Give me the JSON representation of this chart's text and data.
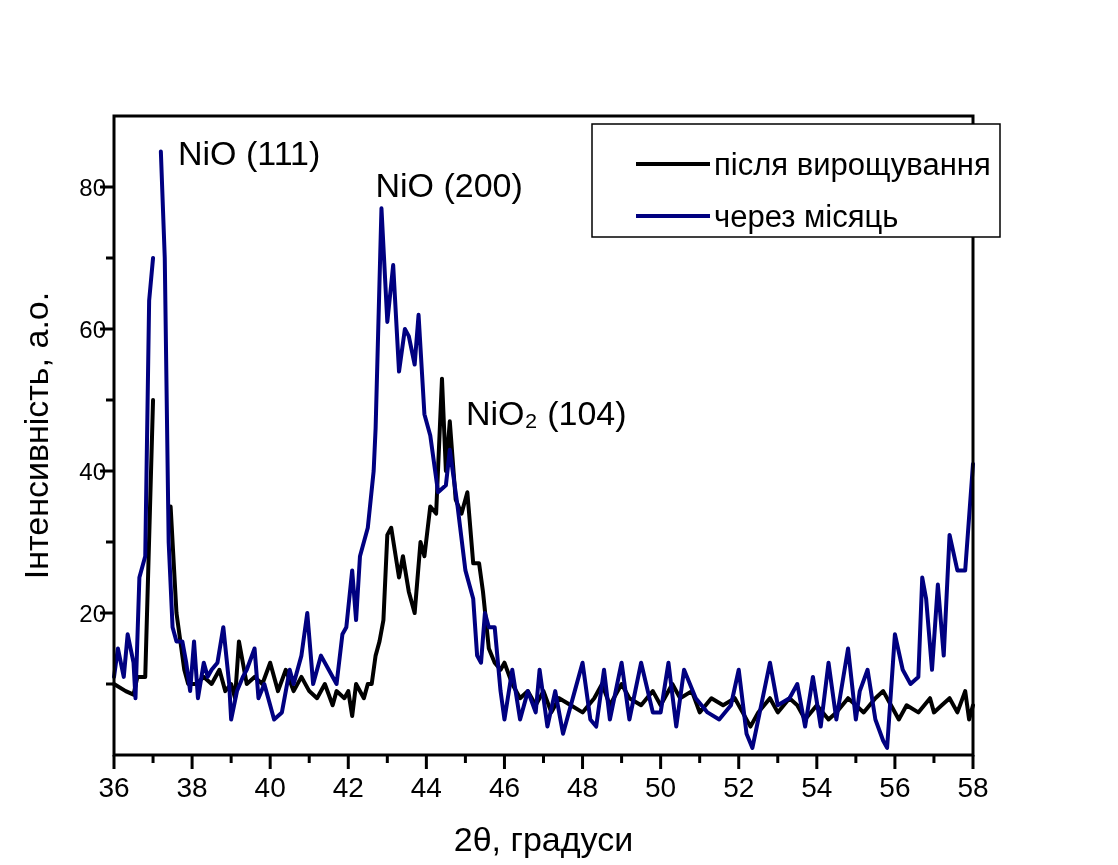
{
  "chart_data": {
    "type": "line",
    "xlabel": "2θ, градуси",
    "ylabel": "Інтенсивність, а.о.",
    "xlim": [
      36,
      58
    ],
    "xticks": [
      36,
      {
        "value": 37,
        "label": null
      },
      38,
      {
        "value": 39,
        "label": null
      },
      40,
      {
        "value": 41,
        "label": null
      },
      42,
      {
        "value": 43,
        "label": null
      },
      44,
      {
        "value": 45,
        "label": null
      },
      46,
      {
        "value": 47,
        "label": null
      },
      48,
      {
        "value": 49,
        "label": null
      },
      50,
      {
        "value": 51,
        "label": null
      },
      52,
      {
        "value": 53,
        "label": null
      },
      54,
      {
        "value": 55,
        "label": null
      },
      56,
      {
        "value": 57,
        "label": null
      },
      58
    ],
    "ylim": [
      0,
      90
    ],
    "yticks": [
      {
        "value": 10,
        "label": null
      },
      20,
      {
        "value": 30,
        "label": null
      },
      40,
      {
        "value": 50,
        "label": null
      },
      60,
      {
        "value": 70,
        "label": null
      },
      80
    ],
    "grid": false,
    "legend": "top right",
    "marker": "none",
    "line_style": "solid",
    "annotations": [
      "NiO (111)",
      {
        "text": "NiO (200)",
        "x": 42.85,
        "y": 77
      },
      {
        "text": "NiO₂ (104)",
        "x": 44.4,
        "y": 53
      }
    ],
    "series": [
      {
        "name": "після вирощування",
        "color": "#000000",
        "x": [
          36.0,
          36.3,
          36.5,
          36.6,
          36.8,
          37.0,
          37.15,
          37.3,
          37.45,
          37.6,
          37.8,
          37.9,
          38.1,
          38.3,
          38.5,
          38.7,
          38.85,
          39.0,
          39.1,
          39.2,
          39.4,
          39.6,
          39.8,
          40.0,
          40.2,
          40.4,
          40.6,
          40.8,
          41.0,
          41.2,
          41.4,
          41.6,
          41.7,
          41.9,
          42.0,
          42.1,
          42.2,
          42.4,
          42.5,
          42.6,
          42.7,
          42.8,
          42.9,
          43.0,
          43.1,
          43.3,
          43.4,
          43.55,
          43.7,
          43.85,
          43.95,
          44.1,
          44.25,
          44.4,
          44.5,
          44.6,
          44.75,
          44.9,
          45.05,
          45.2,
          45.35,
          45.45,
          45.6,
          45.75,
          45.9,
          46.0,
          46.2,
          46.4,
          46.6,
          46.8,
          47.0,
          47.2,
          47.4,
          47.7,
          48.0,
          48.3,
          48.5,
          48.7,
          49.0,
          49.2,
          49.5,
          49.8,
          50.0,
          50.3,
          50.5,
          50.8,
          51.0,
          51.3,
          51.6,
          51.9,
          52.1,
          52.3,
          52.5,
          52.8,
          53.0,
          53.3,
          53.5,
          53.7,
          54.0,
          54.3,
          54.5,
          54.8,
          55.0,
          55.2,
          55.5,
          55.7,
          55.9,
          56.1,
          56.3,
          56.6,
          56.9,
          57.0,
          57.2,
          57.4,
          57.6,
          57.8,
          57.9,
          58.0
        ],
        "values": [
          10,
          9,
          8.5,
          11,
          11,
          50,
          null,
          null,
          35,
          20,
          12,
          10,
          10,
          11,
          10,
          12,
          9,
          10,
          8,
          16,
          10,
          11,
          10,
          13,
          9,
          12,
          9,
          11,
          9,
          8,
          10,
          7,
          9,
          8,
          9,
          5.5,
          10,
          8,
          10,
          10,
          14,
          16,
          19,
          31,
          32,
          25,
          28,
          23,
          20,
          30,
          28,
          35,
          34,
          53,
          40,
          47,
          36,
          34,
          37,
          27,
          27,
          23,
          15,
          13,
          12,
          13,
          10,
          8,
          9,
          7,
          9,
          6,
          8,
          7,
          6,
          8,
          10,
          7,
          10,
          8,
          7,
          9,
          7,
          10,
          8,
          9,
          6,
          8,
          7,
          8,
          6,
          4,
          6,
          8,
          6,
          8,
          7,
          5,
          7,
          5,
          6,
          8,
          7,
          6,
          8,
          9,
          7,
          5,
          7,
          6,
          8,
          6,
          7,
          8,
          6,
          9,
          5,
          7
        ]
      },
      {
        "name": "через місяць",
        "color": "#000080",
        "x": [
          36.0,
          36.1,
          36.25,
          36.35,
          36.5,
          36.55,
          36.65,
          36.8,
          36.9,
          37.0,
          37.1,
          37.2,
          37.3,
          37.4,
          37.5,
          37.6,
          37.75,
          37.85,
          37.95,
          38.05,
          38.15,
          38.3,
          38.4,
          38.5,
          38.65,
          38.8,
          38.95,
          39.0,
          39.15,
          39.3,
          39.4,
          39.6,
          39.7,
          39.85,
          40.0,
          40.1,
          40.3,
          40.5,
          40.6,
          40.8,
          40.95,
          41.1,
          41.3,
          41.5,
          41.7,
          41.85,
          41.95,
          42.1,
          42.2,
          42.3,
          42.5,
          42.65,
          42.7,
          42.85,
          43.0,
          43.15,
          43.3,
          43.45,
          43.55,
          43.7,
          43.8,
          43.95,
          44.1,
          44.3,
          44.5,
          44.6,
          44.8,
          45.0,
          45.2,
          45.3,
          45.4,
          45.5,
          45.6,
          45.75,
          45.9,
          46.0,
          46.2,
          46.4,
          46.6,
          46.8,
          46.9,
          47.1,
          47.3,
          47.5,
          47.8,
          48.0,
          48.2,
          48.35,
          48.55,
          48.7,
          49.0,
          49.2,
          49.5,
          49.8,
          50.0,
          50.2,
          50.4,
          50.6,
          50.9,
          51.2,
          51.5,
          51.8,
          52.0,
          52.2,
          52.35,
          52.5,
          52.8,
          53.0,
          53.3,
          53.5,
          53.7,
          53.9,
          54.1,
          54.3,
          54.5,
          54.8,
          55.0,
          55.1,
          55.3,
          55.5,
          55.7,
          55.8,
          56.0,
          56.2,
          56.4,
          56.6,
          56.7,
          56.8,
          56.95,
          57.1,
          57.25,
          57.4,
          57.6,
          57.8,
          58.0
        ],
        "values": [
          11,
          15,
          11,
          17,
          13,
          8,
          25,
          28,
          64,
          70,
          null,
          85,
          70,
          30,
          18,
          16,
          16,
          13,
          9,
          16,
          8,
          13,
          11,
          12,
          13,
          18,
          10,
          5,
          9,
          11,
          12,
          15,
          8,
          10,
          7,
          5,
          6,
          12,
          10,
          14,
          20,
          10,
          14,
          12,
          10,
          17,
          18,
          26,
          19,
          28,
          32,
          40,
          46,
          77,
          61,
          69,
          54,
          60,
          59,
          55,
          62,
          48,
          45,
          37,
          38,
          43,
          35,
          26,
          22,
          14,
          13,
          20,
          18,
          18,
          9,
          5,
          12,
          5,
          9,
          6,
          12,
          4,
          9,
          3,
          9,
          13,
          5,
          4,
          12,
          5,
          13,
          5,
          13,
          6,
          6,
          13,
          4,
          12,
          8,
          6,
          5,
          7,
          12,
          3,
          1,
          5,
          13,
          7,
          8,
          10,
          4,
          11,
          4,
          13,
          5,
          15,
          5,
          9,
          12,
          5,
          2,
          1,
          17,
          12,
          10,
          11,
          25,
          22,
          12,
          24,
          14,
          31,
          26,
          26,
          41
        ]
      }
    ]
  }
}
